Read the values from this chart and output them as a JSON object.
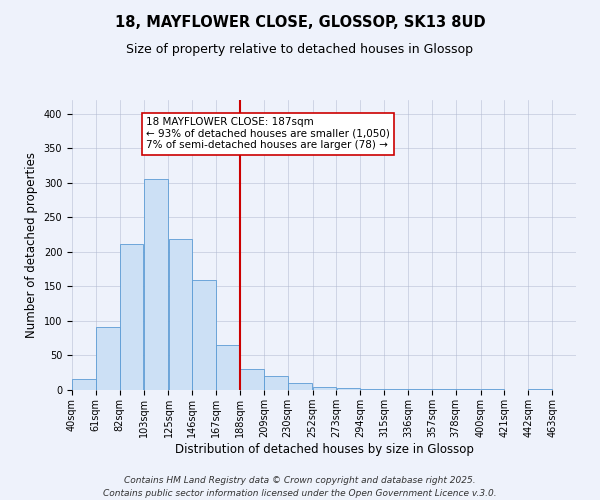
{
  "title": "18, MAYFLOWER CLOSE, GLOSSOP, SK13 8UD",
  "subtitle": "Size of property relative to detached houses in Glossop",
  "xlabel": "Distribution of detached houses by size in Glossop",
  "ylabel": "Number of detached properties",
  "bar_left_edges": [
    40,
    61,
    82,
    103,
    125,
    146,
    167,
    188,
    209,
    230,
    252,
    273,
    294,
    315,
    336,
    357,
    378,
    400,
    421,
    442
  ],
  "bar_widths": [
    21,
    21,
    21,
    22,
    21,
    21,
    21,
    21,
    21,
    22,
    21,
    21,
    21,
    21,
    21,
    21,
    22,
    21,
    21,
    21
  ],
  "bar_heights": [
    16,
    91,
    211,
    306,
    219,
    160,
    65,
    31,
    20,
    10,
    4,
    3,
    2,
    1,
    1,
    1,
    1,
    1,
    0,
    2
  ],
  "tick_labels": [
    "40sqm",
    "61sqm",
    "82sqm",
    "103sqm",
    "125sqm",
    "146sqm",
    "167sqm",
    "188sqm",
    "209sqm",
    "230sqm",
    "252sqm",
    "273sqm",
    "294sqm",
    "315sqm",
    "336sqm",
    "357sqm",
    "378sqm",
    "400sqm",
    "421sqm",
    "442sqm",
    "463sqm"
  ],
  "tick_positions": [
    40,
    61,
    82,
    103,
    125,
    146,
    167,
    188,
    209,
    230,
    252,
    273,
    294,
    315,
    336,
    357,
    378,
    400,
    421,
    442,
    463
  ],
  "bar_color": "#cce0f5",
  "bar_edge_color": "#5b9bd5",
  "vline_x": 188,
  "vline_color": "#cc0000",
  "ylim": [
    0,
    420
  ],
  "xlim": [
    40,
    484
  ],
  "annotation_title": "18 MAYFLOWER CLOSE: 187sqm",
  "annotation_line1": "← 93% of detached houses are smaller (1,050)",
  "annotation_line2": "7% of semi-detached houses are larger (78) →",
  "footer1": "Contains HM Land Registry data © Crown copyright and database right 2025.",
  "footer2": "Contains public sector information licensed under the Open Government Licence v.3.0.",
  "background_color": "#eef2fb",
  "plot_background_color": "#eef2fb",
  "title_fontsize": 10.5,
  "subtitle_fontsize": 9,
  "axis_label_fontsize": 8.5,
  "tick_fontsize": 7,
  "annotation_fontsize": 7.5,
  "footer_fontsize": 6.5
}
